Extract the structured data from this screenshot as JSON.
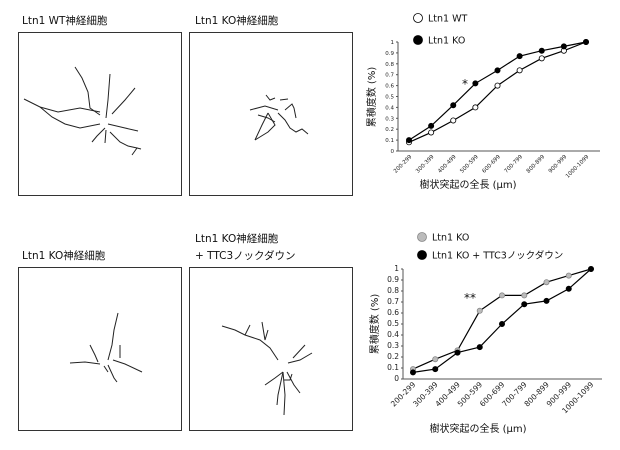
{
  "panels": [
    {
      "label": "Ltn1 WT神経細胞"
    },
    {
      "label": "Ltn1 KO神経細胞"
    },
    {
      "label": "Ltn1 KO神経細胞"
    },
    {
      "label_line1": "Ltn1 KO神経細胞",
      "label_line2": "+ TTC3ノックダウン"
    }
  ],
  "chart_data": [
    {
      "type": "line",
      "xlabel": "樹状突起の全長 (µm)",
      "ylabel": "累積度数 (%)",
      "categories": [
        "200-299",
        "300-399",
        "400-499",
        "500-599",
        "600-699",
        "700-799",
        "800-899",
        "900-999",
        "1000-1099"
      ],
      "yticks": [
        "0",
        "0.1",
        "0.2",
        "0.3",
        "0.4",
        "0.5",
        "0.6",
        "0.7",
        "0.8",
        "0.9",
        "1"
      ],
      "ylim": [
        0,
        1
      ],
      "annotation": "*",
      "legend_placement": "top-left",
      "series": [
        {
          "name": "Ltn1 WT",
          "marker": "open-circle",
          "color": "#ffffff",
          "values": [
            0.08,
            0.17,
            0.28,
            0.4,
            0.6,
            0.74,
            0.85,
            0.92,
            1.0
          ]
        },
        {
          "name": "Ltn1 KO",
          "marker": "filled-circle",
          "color": "#000000",
          "values": [
            0.1,
            0.23,
            0.42,
            0.62,
            0.74,
            0.87,
            0.92,
            0.96,
            1.0
          ]
        }
      ]
    },
    {
      "type": "line",
      "xlabel": "樹状突起の全長 (µm)",
      "ylabel": "累積度数 (%)",
      "categories": [
        "200-299",
        "300-399",
        "400-499",
        "500-599",
        "600-699",
        "700-799",
        "800-899",
        "900-999",
        "1000-1099"
      ],
      "yticks": [
        "0",
        "0.1",
        "0.2",
        "0.3",
        "0.4",
        "0.5",
        "0.6",
        "0.7",
        "0.8",
        "0.9",
        "1"
      ],
      "ylim": [
        0,
        1
      ],
      "annotation": "**",
      "legend_placement": "top-left",
      "series": [
        {
          "name": "Ltn1 KO",
          "marker": "gray-circle",
          "color": "#bbbbbb",
          "values": [
            0.09,
            0.18,
            0.26,
            0.62,
            0.76,
            0.76,
            0.88,
            0.94,
            1.0
          ]
        },
        {
          "name": "Ltn1 KO + TTC3ノックダウン",
          "marker": "filled-circle",
          "color": "#000000",
          "values": [
            0.06,
            0.09,
            0.24,
            0.29,
            0.5,
            0.68,
            0.71,
            0.82,
            1.0
          ]
        }
      ]
    }
  ]
}
